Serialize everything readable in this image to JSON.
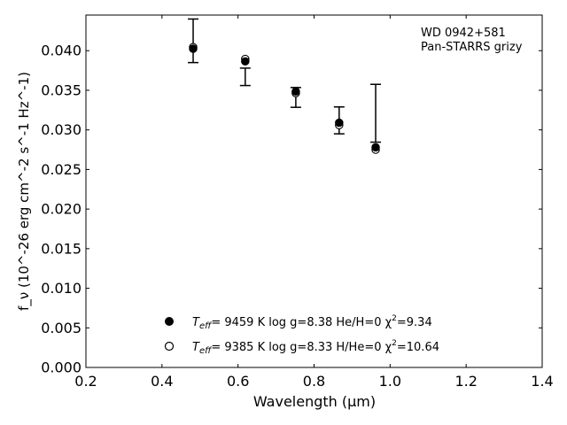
{
  "chart_data": {
    "type": "scatter",
    "xlabel": "Wavelength (μm)",
    "ylabel": "f_ν (10^-26 erg cm^-2 s^-1 Hz^-1)",
    "xlim": [
      0.2,
      1.4
    ],
    "ylim": [
      0.0,
      0.0445
    ],
    "xticks": [
      0.2,
      0.4,
      0.6,
      0.8,
      1.0,
      1.2,
      1.4
    ],
    "xtick_labels": [
      "0.2",
      "0.4",
      "0.6",
      "0.8",
      "1.0",
      "1.2",
      "1.4"
    ],
    "yticks": [
      0.0,
      0.005,
      0.01,
      0.015,
      0.02,
      0.025,
      0.03,
      0.035,
      0.04
    ],
    "ytick_labels": [
      "0.000",
      "0.005",
      "0.010",
      "0.015",
      "0.020",
      "0.025",
      "0.030",
      "0.035",
      "0.040"
    ],
    "grid": false,
    "annotation": [
      "WD 0942+581",
      "Pan-STARRS grizy"
    ],
    "observed": {
      "x": [
        0.482,
        0.619,
        0.752,
        0.866,
        0.962
      ],
      "y": [
        0.04125,
        0.0367,
        0.0341,
        0.0312,
        0.0321
      ],
      "yerr": [
        0.00275,
        0.0011,
        0.00125,
        0.0017,
        0.00365
      ]
    },
    "series": [
      {
        "marker": "filled-circle",
        "legend_parts": [
          "T",
          "eff",
          "=  9459 K  log g=8.38  He/H=0  χ",
          "2",
          "=9.34"
        ],
        "x": [
          0.482,
          0.619,
          0.752,
          0.866,
          0.962
        ],
        "y": [
          0.04025,
          0.03865,
          0.03485,
          0.0309,
          0.0278
        ]
      },
      {
        "marker": "open-circle",
        "legend_parts": [
          "T",
          "eff",
          "=  9385 K  log g=8.33  H/He=0  χ",
          "2",
          "=10.64"
        ],
        "x": [
          0.482,
          0.619,
          0.752,
          0.866,
          0.962
        ],
        "y": [
          0.04045,
          0.03895,
          0.03465,
          0.0306,
          0.0275
        ]
      }
    ]
  }
}
